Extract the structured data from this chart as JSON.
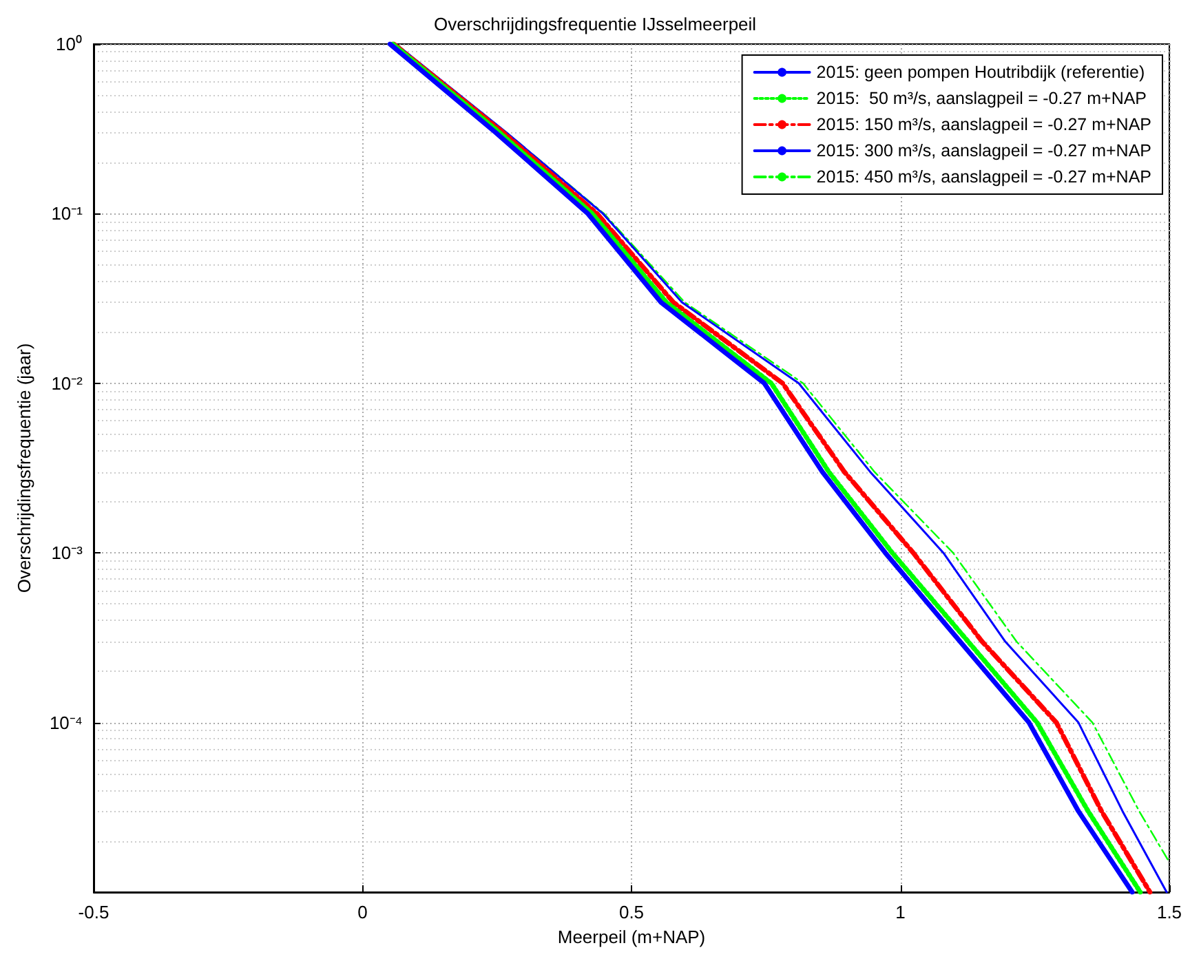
{
  "chart_data": {
    "type": "line",
    "title": "Overschrijdingsfrequentie IJsselmeerpeil",
    "xlabel": "Meerpeil (m+NAP)",
    "ylabel": "Overschrijdingsfrequentie (jaar)",
    "xlim": [
      -0.5,
      1.5
    ],
    "xticks": [
      -0.5,
      0,
      0.5,
      1,
      1.5
    ],
    "ylim": [
      1e-05,
      1
    ],
    "yticks": [
      {
        "value": 1e-05,
        "label": null
      },
      {
        "value": 0.0001,
        "label": "10⁻⁴"
      },
      {
        "value": 0.001,
        "label": "10⁻³"
      },
      {
        "value": 0.01,
        "label": "10⁻²"
      },
      {
        "value": 0.1,
        "label": "10⁻¹"
      },
      {
        "value": 1,
        "label": "10⁰"
      }
    ],
    "log": "y",
    "grid": true,
    "legend": "top right",
    "marker": "none",
    "series": [
      {
        "name": "2015: geen pompen Houtribdijk (referentie)",
        "color": "#0000ff",
        "line_style": "solid",
        "x": [
          0.051,
          0.248,
          0.419,
          0.555,
          0.747,
          0.855,
          0.972,
          1.111,
          1.239,
          1.331,
          1.431
        ],
        "values": [
          1,
          0.3,
          0.1,
          0.03,
          0.01,
          0.003,
          0.001,
          0.0003,
          0.0001,
          3e-05,
          1e-05
        ]
      },
      {
        "name": "2015:  50 m³/s, aanslagpeil = -0.27 m+NAP",
        "color": "#00ff00",
        "line_style": "dotted",
        "x": [
          0.056,
          0.255,
          0.427,
          0.565,
          0.76,
          0.867,
          0.985,
          1.126,
          1.254,
          1.349,
          1.446
        ],
        "values": [
          1,
          0.3,
          0.1,
          0.03,
          0.01,
          0.003,
          0.001,
          0.0003,
          0.0001,
          3e-05,
          1e-05
        ]
      },
      {
        "name": "2015: 150 m³/s, aanslagpeil = -0.27 m+NAP",
        "color": "#ff0000",
        "line_style": "dashed",
        "x": [
          0.058,
          0.262,
          0.436,
          0.578,
          0.781,
          0.896,
          1.024,
          1.152,
          1.29,
          1.374,
          1.464
        ],
        "values": [
          1,
          0.3,
          0.1,
          0.03,
          0.01,
          0.003,
          0.001,
          0.0003,
          0.0001,
          3e-05,
          1e-05
        ]
      },
      {
        "name": "2015: 300 m³/s, aanslagpeil = -0.27 m+NAP",
        "color": "#0000ff",
        "line_style": "solid",
        "x": [
          0.062,
          0.268,
          0.447,
          0.594,
          0.811,
          0.944,
          1.08,
          1.195,
          1.331,
          1.413,
          1.495
        ],
        "values": [
          1,
          0.3,
          0.1,
          0.03,
          0.01,
          0.003,
          0.001,
          0.0003,
          0.0001,
          3e-05,
          1e-05
        ]
      },
      {
        "name": "2015: 450 m³/s, aanslagpeil = -0.27 m+NAP",
        "color": "#00ff00",
        "line_style": "dashed",
        "x": [
          0.062,
          0.268,
          0.449,
          0.599,
          0.819,
          0.952,
          1.098,
          1.216,
          1.357,
          1.444,
          1.5
        ],
        "values": [
          1,
          0.3,
          0.1,
          0.03,
          0.01,
          0.003,
          0.001,
          0.0003,
          0.0001,
          3e-05,
          1.5e-05
        ]
      }
    ]
  }
}
